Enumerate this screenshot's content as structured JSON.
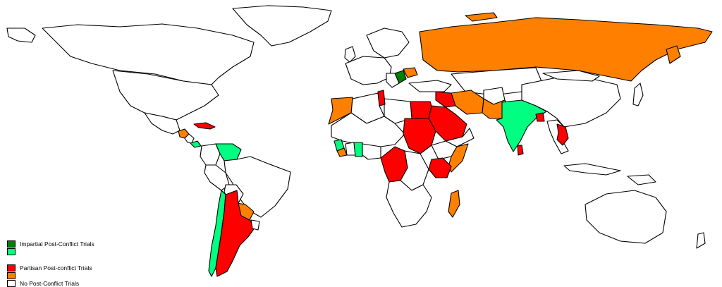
{
  "colors": {
    "impartial_strong": "#008000",
    "impartial_light": "#00ff80",
    "partisan_strong": "#ff0000",
    "partisan_light": "#ff8000",
    "none": "#ffffff",
    "border": "#000000"
  },
  "legend": {
    "items": [
      {
        "label": "Impartial Post-Conflict Trials",
        "color": "#008000"
      },
      {
        "label": "",
        "color": "#00ff80"
      },
      {
        "label": "Partisan Post-conflict Trials",
        "color": "#ff0000"
      },
      {
        "label": "",
        "color": "#ff8000"
      },
      {
        "label": "No Post-Conflict Trials",
        "color": "#ffffff"
      }
    ]
  },
  "regions": [
    {
      "name": "russia",
      "category": "partisan_light"
    },
    {
      "name": "kazakhstan-region",
      "category": "none"
    },
    {
      "name": "india",
      "category": "impartial_light"
    },
    {
      "name": "argentina",
      "category": "partisan_strong"
    },
    {
      "name": "chile",
      "category": "impartial_light"
    },
    {
      "name": "paraguay",
      "category": "partisan_light"
    },
    {
      "name": "venezuela",
      "category": "impartial_light"
    },
    {
      "name": "sudan",
      "category": "partisan_strong"
    },
    {
      "name": "saudi-arabia",
      "category": "partisan_strong"
    },
    {
      "name": "egypt",
      "category": "partisan_strong"
    },
    {
      "name": "iraq",
      "category": "partisan_strong"
    },
    {
      "name": "iran",
      "category": "partisan_light"
    },
    {
      "name": "pakistan",
      "category": "partisan_light"
    },
    {
      "name": "madagascar",
      "category": "partisan_light"
    },
    {
      "name": "somalia",
      "category": "partisan_light"
    },
    {
      "name": "kenya",
      "category": "partisan_strong"
    },
    {
      "name": "drc",
      "category": "partisan_strong"
    },
    {
      "name": "morocco",
      "category": "partisan_light"
    },
    {
      "name": "tunisia",
      "category": "partisan_strong"
    },
    {
      "name": "sierra-leone",
      "category": "impartial_light"
    },
    {
      "name": "liberia",
      "category": "partisan_light"
    },
    {
      "name": "ghana",
      "category": "impartial_light"
    },
    {
      "name": "cambodia",
      "category": "partisan_strong"
    },
    {
      "name": "bangladesh",
      "category": "partisan_strong"
    },
    {
      "name": "sri-lanka",
      "category": "partisan_strong"
    },
    {
      "name": "serbia",
      "category": "impartial_strong"
    },
    {
      "name": "romania",
      "category": "partisan_light"
    },
    {
      "name": "cuba",
      "category": "partisan_strong"
    },
    {
      "name": "guatemala",
      "category": "partisan_light"
    },
    {
      "name": "panama",
      "category": "impartial_light"
    },
    {
      "name": "greenland",
      "category": "none"
    },
    {
      "name": "canada",
      "category": "none"
    },
    {
      "name": "usa",
      "category": "none"
    },
    {
      "name": "brazil",
      "category": "none"
    },
    {
      "name": "china",
      "category": "none"
    },
    {
      "name": "australia",
      "category": "none"
    }
  ]
}
